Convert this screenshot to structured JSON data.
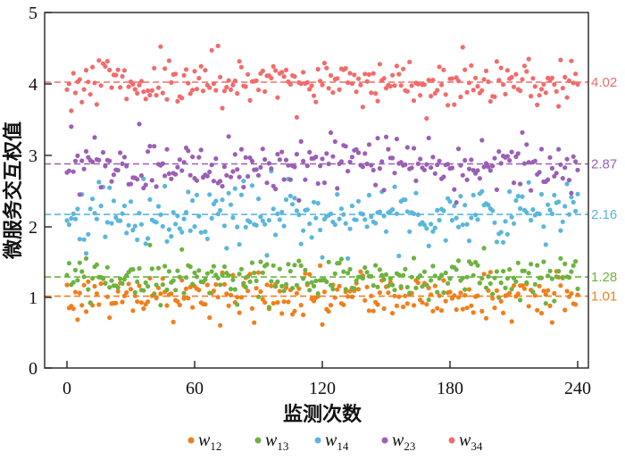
{
  "chart_data": {
    "type": "scatter",
    "title": "",
    "xlabel": "监测次数",
    "ylabel": "微服务交互权值",
    "xlim": [
      0,
      240
    ],
    "ylim": [
      0,
      5
    ],
    "xticks": [
      "0",
      "60",
      "120",
      "180",
      "240"
    ],
    "yticks": [
      "0",
      "1",
      "2",
      "3",
      "4",
      "5"
    ],
    "grid": false,
    "legend_position": "bottom",
    "num_points_per_series": 241,
    "series": [
      {
        "name": "w12",
        "base": "w",
        "sub": "12",
        "color": "#f07f1b",
        "mean": 1.01,
        "mean_label": "1.01",
        "spread": 0.17
      },
      {
        "name": "w13",
        "base": "w",
        "sub": "13",
        "color": "#6cb33f",
        "mean": 1.28,
        "mean_label": "1.28",
        "spread": 0.15
      },
      {
        "name": "w14",
        "base": "w",
        "sub": "14",
        "color": "#5ab6dc",
        "mean": 2.16,
        "mean_label": "2.16",
        "spread": 0.24
      },
      {
        "name": "w23",
        "base": "w",
        "sub": "23",
        "color": "#9b5fb5",
        "mean": 2.87,
        "mean_label": "2.87",
        "spread": 0.2
      },
      {
        "name": "w34",
        "base": "w",
        "sub": "34",
        "color": "#f26b6b",
        "mean": 4.02,
        "mean_label": "4.02",
        "spread": 0.17
      }
    ]
  }
}
